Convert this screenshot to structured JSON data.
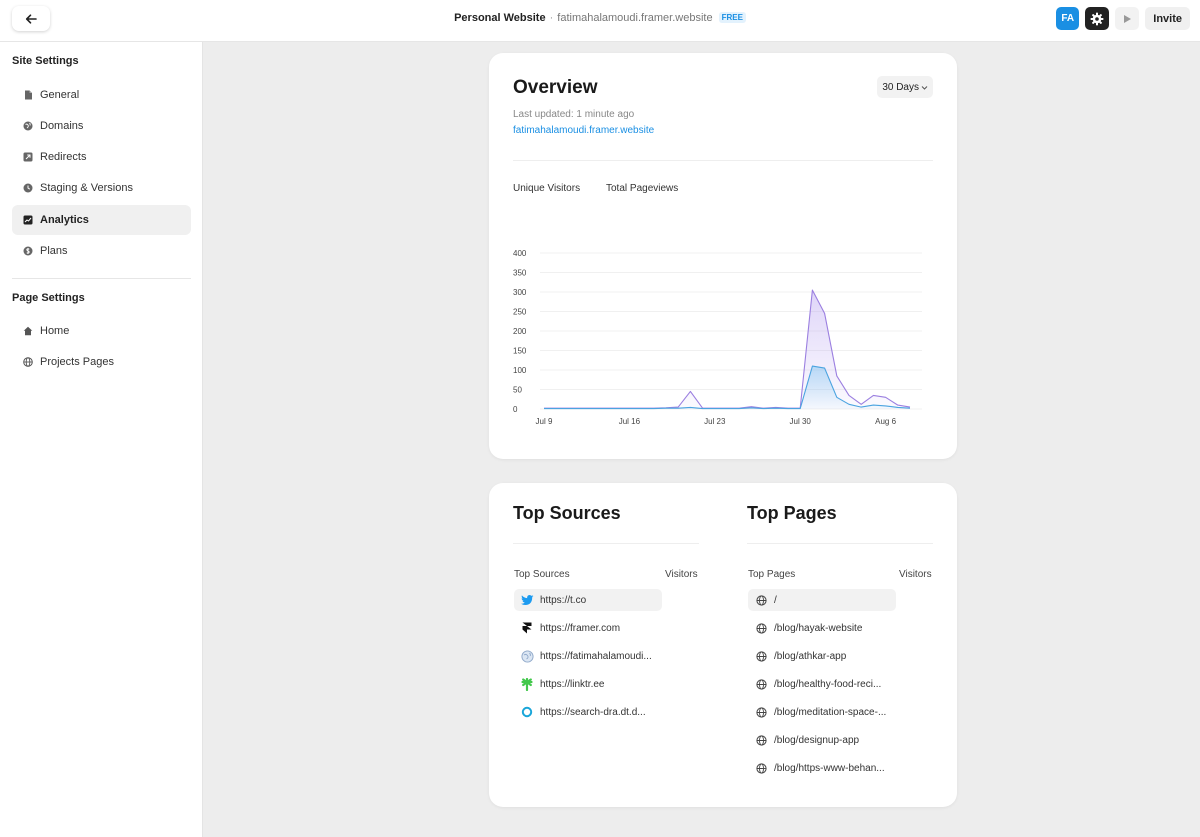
{
  "header": {
    "site_name": "Personal Website",
    "separator": "·",
    "site_url": "fatimahalamoudi.framer.website",
    "plan_badge": "FREE",
    "avatar_initials": "FA",
    "invite_label": "Invite"
  },
  "sidebar": {
    "site_settings_heading": "Site Settings",
    "site_items": [
      {
        "label": "General",
        "icon": "document-icon"
      },
      {
        "label": "Domains",
        "icon": "globe-icon"
      },
      {
        "label": "Redirects",
        "icon": "redirect-icon"
      },
      {
        "label": "Staging & Versions",
        "icon": "clock-icon"
      },
      {
        "label": "Analytics",
        "icon": "chart-icon",
        "active": true
      },
      {
        "label": "Plans",
        "icon": "dollar-icon"
      }
    ],
    "page_settings_heading": "Page Settings",
    "page_items": [
      {
        "label": "Home",
        "icon": "home-icon"
      },
      {
        "label": "Projects Pages",
        "icon": "globe-icon"
      }
    ]
  },
  "overview": {
    "title": "Overview",
    "range": "30 Days",
    "last_updated": "Last updated: 1 minute ago",
    "site_link": "fatimahalamoudi.framer.website",
    "tabs": [
      "Unique Visitors",
      "Total Pageviews"
    ]
  },
  "chart_data": {
    "type": "area",
    "title": "",
    "xlabel": "",
    "ylabel": "",
    "ylim": [
      0,
      400
    ],
    "yticks": [
      0,
      50,
      100,
      150,
      200,
      250,
      300,
      350,
      400
    ],
    "xtick_labels": [
      {
        "day": 0,
        "label": "Jul 9"
      },
      {
        "day": 7,
        "label": "Jul 16"
      },
      {
        "day": 14,
        "label": "Jul 23"
      },
      {
        "day": 21,
        "label": "Jul 30"
      },
      {
        "day": 28,
        "label": "Aug 6"
      }
    ],
    "x": [
      0,
      1,
      2,
      3,
      4,
      5,
      6,
      7,
      8,
      9,
      10,
      11,
      12,
      13,
      14,
      15,
      16,
      17,
      18,
      19,
      20,
      21,
      22,
      23,
      24,
      25,
      26,
      27,
      28,
      29,
      30
    ],
    "series": [
      {
        "color": "#9b7fe0",
        "values": [
          2,
          2,
          2,
          2,
          2,
          2,
          2,
          2,
          2,
          2,
          3,
          5,
          45,
          2,
          2,
          2,
          2,
          6,
          2,
          4,
          2,
          2,
          305,
          245,
          85,
          35,
          12,
          35,
          30,
          10,
          5
        ]
      },
      {
        "color": "#4aa3e0",
        "values": [
          1,
          1,
          1,
          1,
          1,
          1,
          1,
          1,
          1,
          1,
          2,
          2,
          4,
          1,
          1,
          1,
          1,
          3,
          1,
          2,
          1,
          1,
          110,
          105,
          30,
          12,
          5,
          10,
          8,
          4,
          2
        ]
      }
    ],
    "grid": true
  },
  "top_sources": {
    "title": "Top Sources",
    "col_label": "Top Sources",
    "visitors_label": "Visitors",
    "items": [
      {
        "label": "https://t.co",
        "icon": "twitter-icon",
        "highlight": true
      },
      {
        "label": "https://framer.com",
        "icon": "framer-icon"
      },
      {
        "label": "https://fatimahalamoudi...",
        "icon": "site-favicon-icon"
      },
      {
        "label": "https://linktr.ee",
        "icon": "linktree-icon"
      },
      {
        "label": "https://search-dra.dt.d...",
        "icon": "search-favicon-icon"
      }
    ]
  },
  "top_pages": {
    "title": "Top Pages",
    "col_label": "Top Pages",
    "visitors_label": "Visitors",
    "items": [
      {
        "label": "/",
        "highlight": true
      },
      {
        "label": "/blog/hayak-website"
      },
      {
        "label": "/blog/athkar-app"
      },
      {
        "label": "/blog/healthy-food-reci..."
      },
      {
        "label": "/blog/meditation-space-..."
      },
      {
        "label": "/blog/designup-app"
      },
      {
        "label": "/blog/https-www-behan..."
      }
    ]
  }
}
